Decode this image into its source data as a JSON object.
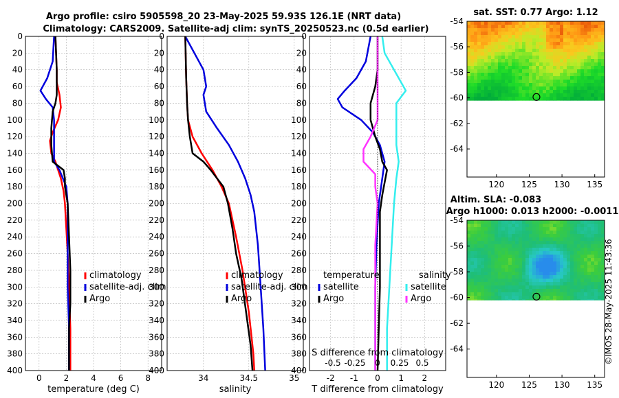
{
  "title_line1": "Argo profile: csiro 5905598_20 23-May-2025 59.93S 126.1E (NRT data)",
  "title_line2": "Climatology: CARS2009. Satellite-adj clim: synTS_20250523.nc (0.5d earlier)",
  "timestamp_text": "©IMOS 28-May-2025 11:43:36",
  "colors": {
    "climatology": "#ff0000",
    "satellite": "#0000dd",
    "argo": "#000000",
    "sat_salinity": "#33eeee",
    "argo_salinity": "#ff33ff"
  },
  "chart_data": [
    {
      "id": "temperature",
      "type": "line",
      "xlabel": "temperature (deg C)",
      "ylabel": "",
      "xlim": [
        -1,
        9
      ],
      "ylim": [
        400,
        0
      ],
      "xticks": [
        0,
        2,
        4,
        6,
        8
      ],
      "yticks": [
        0,
        20,
        40,
        60,
        80,
        100,
        120,
        140,
        160,
        180,
        200,
        220,
        240,
        260,
        280,
        300,
        320,
        340,
        360,
        380,
        400
      ],
      "legend": [
        "climatology",
        "satellite-adj. clim",
        "Argo"
      ],
      "series": [
        {
          "name": "climatology",
          "color": "#ff0000",
          "points": [
            [
              1.2,
              0
            ],
            [
              1.3,
              40
            ],
            [
              1.3,
              55
            ],
            [
              1.5,
              70
            ],
            [
              1.6,
              85
            ],
            [
              1.4,
              100
            ],
            [
              1.0,
              115
            ],
            [
              0.8,
              125
            ],
            [
              0.9,
              140
            ],
            [
              1.2,
              150
            ],
            [
              1.4,
              160
            ],
            [
              1.6,
              170
            ],
            [
              1.8,
              185
            ],
            [
              1.9,
              200
            ],
            [
              2.0,
              230
            ],
            [
              2.1,
              260
            ],
            [
              2.2,
              300
            ],
            [
              2.3,
              350
            ],
            [
              2.3,
              400
            ]
          ]
        },
        {
          "name": "satellite-adj. clim",
          "color": "#0000dd",
          "points": [
            [
              1.1,
              0
            ],
            [
              1.0,
              30
            ],
            [
              0.6,
              50
            ],
            [
              0.1,
              65
            ],
            [
              0.5,
              75
            ],
            [
              1.0,
              85
            ],
            [
              1.1,
              100
            ],
            [
              1.1,
              150
            ],
            [
              1.5,
              160
            ],
            [
              2.0,
              180
            ],
            [
              2.1,
              200
            ],
            [
              2.1,
              250
            ],
            [
              2.1,
              300
            ],
            [
              2.2,
              350
            ],
            [
              2.2,
              400
            ]
          ]
        },
        {
          "name": "Argo",
          "color": "#000000",
          "points": [
            [
              1.2,
              0
            ],
            [
              1.3,
              40
            ],
            [
              1.3,
              70
            ],
            [
              1.2,
              80
            ],
            [
              1.0,
              90
            ],
            [
              0.9,
              110
            ],
            [
              0.9,
              130
            ],
            [
              1.0,
              150
            ],
            [
              1.8,
              160
            ],
            [
              1.9,
              170
            ],
            [
              1.9,
              180
            ],
            [
              2.0,
              190
            ],
            [
              2.1,
              200
            ],
            [
              2.2,
              240
            ],
            [
              2.3,
              280
            ],
            [
              2.3,
              320
            ],
            [
              2.2,
              350
            ],
            [
              2.2,
              400
            ]
          ]
        }
      ]
    },
    {
      "id": "salinity",
      "type": "line",
      "xlabel": "salinity",
      "ylabel": "",
      "xlim": [
        33.6,
        35.1
      ],
      "ylim": [
        400,
        0
      ],
      "xticks": [
        34,
        34.5,
        35
      ],
      "yticks": [
        0,
        20,
        40,
        60,
        80,
        100,
        120,
        140,
        160,
        180,
        200,
        220,
        240,
        260,
        280,
        300,
        320,
        340,
        360,
        380,
        400
      ],
      "legend": [
        "climatology",
        "satellite-adj. clim",
        "Argo"
      ],
      "series": [
        {
          "name": "climatology",
          "color": "#ff0000",
          "points": [
            [
              33.8,
              0
            ],
            [
              33.81,
              50
            ],
            [
              33.82,
              80
            ],
            [
              33.83,
              100
            ],
            [
              33.88,
              120
            ],
            [
              33.98,
              140
            ],
            [
              34.1,
              160
            ],
            [
              34.2,
              180
            ],
            [
              34.28,
              200
            ],
            [
              34.36,
              240
            ],
            [
              34.43,
              280
            ],
            [
              34.5,
              330
            ],
            [
              34.55,
              380
            ],
            [
              34.56,
              400
            ]
          ]
        },
        {
          "name": "satellite-adj. clim",
          "color": "#0000dd",
          "points": [
            [
              33.8,
              0
            ],
            [
              33.9,
              20
            ],
            [
              34.0,
              40
            ],
            [
              34.03,
              60
            ],
            [
              34.0,
              70
            ],
            [
              34.03,
              90
            ],
            [
              34.15,
              110
            ],
            [
              34.28,
              130
            ],
            [
              34.38,
              150
            ],
            [
              34.46,
              170
            ],
            [
              34.52,
              190
            ],
            [
              34.56,
              210
            ],
            [
              34.6,
              250
            ],
            [
              34.63,
              300
            ],
            [
              34.66,
              350
            ],
            [
              34.68,
              400
            ]
          ]
        },
        {
          "name": "Argo",
          "color": "#000000",
          "points": [
            [
              33.8,
              0
            ],
            [
              33.81,
              50
            ],
            [
              33.82,
              80
            ],
            [
              33.83,
              100
            ],
            [
              33.85,
              120
            ],
            [
              33.88,
              140
            ],
            [
              34.0,
              150
            ],
            [
              34.08,
              160
            ],
            [
              34.15,
              170
            ],
            [
              34.22,
              180
            ],
            [
              34.27,
              200
            ],
            [
              34.32,
              230
            ],
            [
              34.36,
              260
            ],
            [
              34.42,
              290
            ],
            [
              34.47,
              330
            ],
            [
              34.52,
              370
            ],
            [
              34.54,
              400
            ]
          ]
        }
      ]
    },
    {
      "id": "difference",
      "type": "line",
      "xlabel": "T difference from climatology",
      "s_axis_label": "S difference from climatology",
      "ylabel": "",
      "xlim": [
        -2.9,
        2.9
      ],
      "ylim": [
        400,
        0
      ],
      "xticks": [
        -2,
        -1,
        0,
        1,
        2
      ],
      "s_ticks": [
        "-0.5",
        "-0.25",
        "0",
        "0.25",
        "0.5"
      ],
      "yticks": [
        0,
        20,
        40,
        60,
        80,
        100,
        120,
        140,
        160,
        180,
        200,
        220,
        240,
        260,
        280,
        300,
        320,
        340,
        360,
        380,
        400
      ],
      "legend_temperature_title": "temperature",
      "legend_salinity_title": "salinity",
      "legend_temperature": [
        "satellite",
        "Argo"
      ],
      "legend_salinity": [
        "satellite",
        "Argo"
      ],
      "series": [
        {
          "name": "satellite (T)",
          "color": "#0000dd",
          "points": [
            [
              -0.3,
              0
            ],
            [
              -0.5,
              30
            ],
            [
              -0.9,
              50
            ],
            [
              -1.4,
              65
            ],
            [
              -1.7,
              75
            ],
            [
              -1.5,
              85
            ],
            [
              -0.7,
              100
            ],
            [
              -0.2,
              115
            ],
            [
              0.1,
              130
            ],
            [
              0.3,
              150
            ],
            [
              0.2,
              170
            ],
            [
              0.05,
              200
            ],
            [
              -0.05,
              250
            ],
            [
              -0.1,
              300
            ],
            [
              -0.1,
              350
            ],
            [
              -0.1,
              400
            ]
          ]
        },
        {
          "name": "Argo (T)",
          "color": "#000000",
          "points": [
            [
              0,
              0
            ],
            [
              0.0,
              40
            ],
            [
              -0.1,
              60
            ],
            [
              -0.3,
              80
            ],
            [
              -0.3,
              100
            ],
            [
              -0.1,
              120
            ],
            [
              0.1,
              135
            ],
            [
              0.2,
              150
            ],
            [
              0.4,
              160
            ],
            [
              0.3,
              175
            ],
            [
              0.2,
              190
            ],
            [
              0.1,
              210
            ],
            [
              0.1,
              260
            ],
            [
              0.1,
              300
            ],
            [
              0.05,
              350
            ],
            [
              0.0,
              400
            ]
          ]
        },
        {
          "name": "satellite (S)",
          "color": "#33eeee",
          "points": [
            [
              0.2,
              0
            ],
            [
              0.3,
              20
            ],
            [
              0.7,
              40
            ],
            [
              1.2,
              65
            ],
            [
              0.8,
              80
            ],
            [
              0.8,
              100
            ],
            [
              0.8,
              130
            ],
            [
              0.9,
              150
            ],
            [
              0.8,
              170
            ],
            [
              0.7,
              200
            ],
            [
              0.6,
              250
            ],
            [
              0.5,
              300
            ],
            [
              0.4,
              350
            ],
            [
              0.4,
              400
            ]
          ]
        },
        {
          "name": "Argo (S)",
          "color": "#ff33ff",
          "points": [
            [
              0,
              0
            ],
            [
              0.0,
              80
            ],
            [
              0.0,
              100
            ],
            [
              -0.3,
              120
            ],
            [
              -0.6,
              135
            ],
            [
              -0.6,
              150
            ],
            [
              -0.1,
              165
            ],
            [
              -0.1,
              180
            ],
            [
              0.0,
              200
            ],
            [
              -0.1,
              250
            ],
            [
              -0.1,
              300
            ],
            [
              -0.1,
              350
            ],
            [
              -0.1,
              400
            ]
          ]
        }
      ]
    }
  ],
  "maps": [
    {
      "id": "sst",
      "title": "sat. SST: 0.77 Argo: 1.12",
      "subtitle": "",
      "xticks": [
        "120",
        "125",
        "130",
        "135"
      ],
      "yticks": [
        "-54",
        "-56",
        "-58",
        "-60",
        "-62",
        "-64"
      ],
      "xlim": [
        115.5,
        136.5
      ],
      "ylim": [
        -66.2,
        -54
      ],
      "data_south_limit": -60.2,
      "marker": {
        "lon": 126.1,
        "lat": -59.93
      }
    },
    {
      "id": "sla",
      "title": "Altim. SLA: -0.083",
      "subtitle": "Argo h1000: 0.013 h2000: -0.0011",
      "xticks": [
        "120",
        "125",
        "130",
        "135"
      ],
      "yticks": [
        "-54",
        "-56",
        "-58",
        "-60",
        "-62",
        "-64"
      ],
      "xlim": [
        115.5,
        136.5
      ],
      "ylim": [
        -66.2,
        -54
      ],
      "data_south_limit": -60.2,
      "marker": {
        "lon": 126.1,
        "lat": -59.93
      }
    }
  ]
}
